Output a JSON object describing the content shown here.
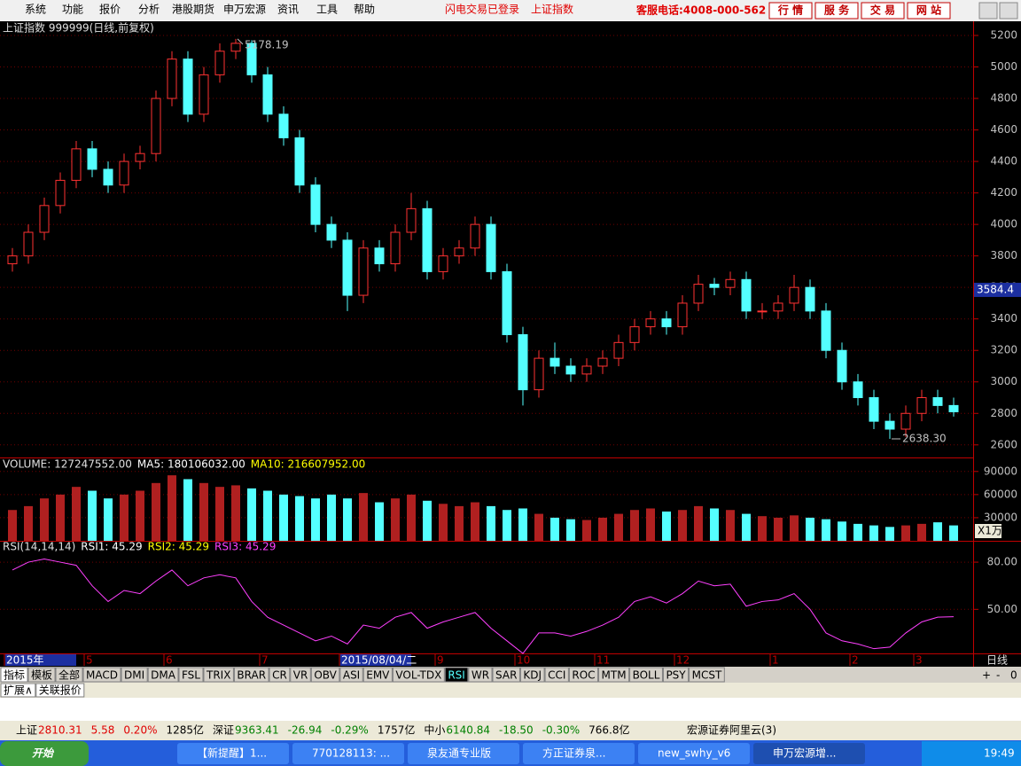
{
  "menu": {
    "items": [
      "系统",
      "功能",
      "报价",
      "分析",
      "港股期货",
      "申万宏源",
      "资讯",
      "工具",
      "帮助"
    ],
    "status": [
      "闪电交易已登录",
      "上证指数"
    ],
    "hotline": "客服电话:4008-000-562",
    "buttons": [
      "行 情",
      "服 务",
      "交 易",
      "网 站"
    ]
  },
  "chart_data": [
    {
      "type": "candlestick",
      "title": "上证指数 999999(日线,前复权)",
      "up_color": "#ff3232",
      "down_color": "#54ffff",
      "categories": [
        "2015年",
        null,
        null,
        null,
        null,
        "5",
        null,
        null,
        null,
        null,
        "6",
        null,
        null,
        null,
        null,
        null,
        "7",
        null,
        null,
        null,
        null,
        "2015/08/04/二",
        null,
        null,
        null,
        null,
        null,
        "9",
        null,
        null,
        null,
        null,
        "10",
        null,
        null,
        null,
        null,
        "11",
        null,
        null,
        null,
        null,
        "12",
        null,
        null,
        null,
        null,
        null,
        "1",
        null,
        null,
        null,
        null,
        "2",
        null,
        null,
        null,
        "3",
        null,
        null
      ],
      "open": [
        3750,
        3800,
        3950,
        4120,
        4280,
        4480,
        4350,
        4250,
        4400,
        4450,
        4800,
        5050,
        4700,
        4950,
        5100,
        5150,
        4950,
        4700,
        4550,
        4250,
        4000,
        3900,
        3550,
        3850,
        3750,
        3950,
        4100,
        3700,
        3800,
        3850,
        4000,
        3700,
        3300,
        2950,
        3150,
        3100,
        3050,
        3100,
        3150,
        3250,
        3350,
        3400,
        3350,
        3500,
        3620,
        3600,
        3650,
        3450,
        3450,
        3500,
        3600,
        3450,
        3200,
        3000,
        2900,
        2750,
        2700,
        2800,
        2900,
        2850
      ],
      "high": [
        3850,
        4000,
        4170,
        4330,
        4530,
        4530,
        4400,
        4450,
        4500,
        4850,
        5100,
        5100,
        5000,
        5150,
        5178.19,
        5170,
        5000,
        4750,
        4600,
        4300,
        4050,
        3950,
        3900,
        3900,
        4000,
        4200,
        4150,
        3850,
        3900,
        4050,
        4050,
        3750,
        3350,
        3200,
        3250,
        3150,
        3150,
        3200,
        3300,
        3400,
        3450,
        3450,
        3550,
        3680,
        3660,
        3700,
        3700,
        3500,
        3550,
        3680,
        3650,
        3500,
        3250,
        3050,
        2950,
        2800,
        2850,
        2950,
        2950,
        2900
      ],
      "low": [
        3700,
        3750,
        3900,
        4070,
        4230,
        4300,
        4200,
        4200,
        4350,
        4400,
        4750,
        4650,
        4650,
        4900,
        5050,
        4900,
        4650,
        4500,
        4200,
        3950,
        3850,
        3450,
        3500,
        3700,
        3700,
        3900,
        3650,
        3650,
        3750,
        3800,
        3650,
        3250,
        2850,
        2900,
        3050,
        3000,
        3000,
        3050,
        3100,
        3200,
        3300,
        3300,
        3300,
        3450,
        3550,
        3550,
        3400,
        3400,
        3400,
        3450,
        3400,
        3150,
        2950,
        2850,
        2700,
        2638.3,
        2650,
        2750,
        2800,
        2780
      ],
      "close": [
        3800,
        3950,
        4120,
        4280,
        4480,
        4350,
        4250,
        4400,
        4450,
        4800,
        5050,
        4700,
        4950,
        5100,
        5150,
        4950,
        4700,
        4550,
        4250,
        4000,
        3900,
        3550,
        3850,
        3750,
        3950,
        4100,
        3700,
        3800,
        3850,
        4000,
        3700,
        3300,
        2950,
        3150,
        3100,
        3050,
        3100,
        3150,
        3250,
        3350,
        3400,
        3350,
        3500,
        3620,
        3600,
        3650,
        3450,
        3450,
        3500,
        3600,
        3450,
        3200,
        3000,
        2900,
        2750,
        2700,
        2800,
        2900,
        2850,
        2810
      ],
      "annotations": [
        "5178.19",
        "2638.30"
      ],
      "cursor_value": {
        "value": 3584.4,
        "label": "3584.4"
      },
      "ylim": [
        2520,
        5290
      ],
      "yticks": [
        2600,
        2800,
        3000,
        3200,
        3400,
        3600,
        3800,
        4000,
        4200,
        4400,
        4600,
        4800,
        5000,
        5200
      ],
      "grid": true
    },
    {
      "type": "bar",
      "title": "VOLUME: 127247552.00",
      "legend": [
        "MA5: 180106032.00",
        "MA10: 216607952.00"
      ],
      "legend_colors": [
        "#ffffff",
        "#ffff00"
      ],
      "unit": "X1万",
      "values": [
        40000,
        45000,
        55000,
        60000,
        70000,
        65000,
        55000,
        60000,
        65000,
        75000,
        85000,
        80000,
        75000,
        70000,
        72000,
        68000,
        65000,
        60000,
        58000,
        55000,
        60000,
        55000,
        62000,
        50000,
        55000,
        60000,
        52000,
        48000,
        45000,
        50000,
        45000,
        40000,
        42000,
        35000,
        30000,
        28000,
        27000,
        30000,
        35000,
        40000,
        42000,
        38000,
        40000,
        45000,
        42000,
        40000,
        35000,
        32000,
        30000,
        33000,
        30000,
        28000,
        25000,
        22000,
        20000,
        18000,
        20000,
        22000,
        24000,
        20000
      ],
      "ylim": [
        0,
        107000
      ],
      "yticks": [
        30000,
        60000,
        90000
      ],
      "grid": true
    },
    {
      "type": "line",
      "title": "RSI(14,14,14)",
      "legend": [
        "RSI1: 45.29",
        "RSI2: 45.29",
        "RSI3: 45.29"
      ],
      "legend_colors": [
        "#ffffff",
        "#ffff00",
        "#ff40ff"
      ],
      "series": [
        {
          "name": "RSI3",
          "color": "#ff40ff",
          "values": [
            75,
            80,
            82,
            80,
            78,
            65,
            55,
            62,
            60,
            68,
            75,
            65,
            70,
            72,
            70,
            55,
            45,
            40,
            35,
            30,
            33,
            28,
            40,
            38,
            45,
            48,
            38,
            42,
            45,
            48,
            38,
            30,
            22,
            35,
            35,
            33,
            36,
            40,
            45,
            55,
            58,
            54,
            60,
            68,
            65,
            66,
            52,
            55,
            56,
            60,
            50,
            35,
            30,
            28,
            25,
            26,
            35,
            42,
            45,
            45.29
          ]
        }
      ],
      "ylim": [
        22,
        93
      ],
      "yticks": [
        {
          "value": 50,
          "label": "50.00"
        },
        {
          "value": 80,
          "label": "80.00"
        }
      ],
      "grid": true
    }
  ],
  "period": "日线",
  "tabs": [
    "指标",
    "模板",
    "全部",
    "MACD",
    "DMI",
    "DMA",
    "FSL",
    "TRIX",
    "BRAR",
    "CR",
    "VR",
    "OBV",
    "ASI",
    "EMV",
    "VOL-TDX",
    "RSI",
    "WR",
    "SAR",
    "KDJ",
    "CCI",
    "ROC",
    "MTM",
    "BOLL",
    "PSY",
    "MCST"
  ],
  "panel_controls": [
    "+",
    "-",
    "0"
  ],
  "tabs2": [
    "扩展∧",
    "关联报价"
  ],
  "status_bar": [
    {
      "text": "上证",
      "color": "#000000"
    },
    {
      "text": "2810.31",
      "color": "#e00000"
    },
    {
      "text": "5.58",
      "color": "#e00000"
    },
    {
      "text": "0.20%",
      "color": "#e00000"
    },
    {
      "text": "1285亿",
      "color": "#000000"
    },
    {
      "text": "深证",
      "color": "#000000"
    },
    {
      "text": "9363.41",
      "color": "#008000"
    },
    {
      "text": "-26.94",
      "color": "#008000"
    },
    {
      "text": "-0.29%",
      "color": "#008000"
    },
    {
      "text": "1757亿",
      "color": "#000000"
    },
    {
      "text": "中小",
      "color": "#000000"
    },
    {
      "text": "6140.84",
      "color": "#008000"
    },
    {
      "text": "-18.50",
      "color": "#008000"
    },
    {
      "text": "-0.30%",
      "color": "#008000"
    },
    {
      "text": "766.8亿",
      "color": "#000000"
    }
  ],
  "server": "宏源证券阿里云(3)",
  "taskbar": {
    "start": "开始",
    "tasks": [
      "【新提醒】1...",
      "770128113: ...",
      "泉友通专业版",
      "方正证券泉...",
      "new_swhy_v6",
      "申万宏源增..."
    ],
    "time": "19:49"
  }
}
